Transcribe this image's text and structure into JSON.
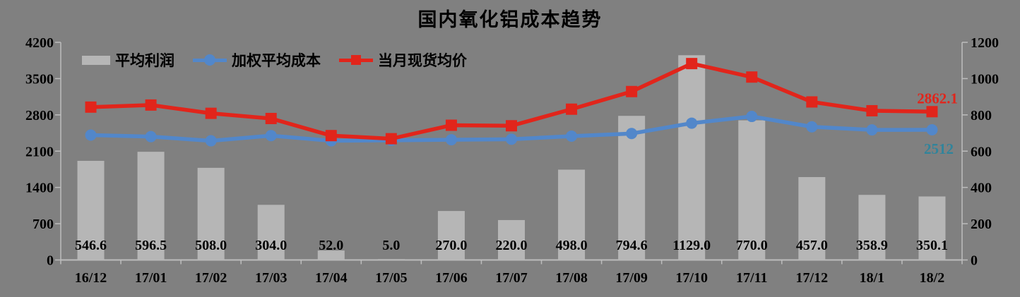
{
  "title": "国内氧化铝成本趋势",
  "colors": {
    "background": "#808080",
    "bar": "#B6B6B6",
    "axis": "#BDBDBD",
    "blue_line": "#5287CA",
    "red_line": "#E1251B",
    "blue_end_label": "#31849B",
    "red_end_label": "#E1251B",
    "text": "#000000"
  },
  "legend": {
    "items": [
      {
        "label": "平均利润",
        "swatch": "bar"
      },
      {
        "label": "加权平均成本",
        "swatch": "line-circle"
      },
      {
        "label": "当月现货均价",
        "swatch": "line-square"
      }
    ]
  },
  "chart_data": {
    "type": "combo-bar-line",
    "title": "国内氧化铝成本趋势",
    "categories": [
      "16/12",
      "17/01",
      "17/02",
      "17/03",
      "17/04",
      "17/05",
      "17/06",
      "17/07",
      "17/08",
      "17/09",
      "17/10",
      "17/11",
      "17/12",
      "18/1",
      "18/2"
    ],
    "series": [
      {
        "name": "平均利润",
        "type": "bar",
        "axis": "right",
        "values": [
          546.6,
          596.5,
          508.0,
          304.0,
          52.0,
          5.0,
          270.0,
          220.0,
          498.0,
          794.6,
          1129.0,
          770.0,
          457.0,
          358.9,
          350.1
        ],
        "value_labels": [
          "546.6",
          "596.5",
          "508.0",
          "304.0",
          "52.0",
          "5.0",
          "270.0",
          "220.0",
          "498.0",
          "794.6",
          "1129.0",
          "770.0",
          "457.0",
          "358.9",
          "350.1"
        ]
      },
      {
        "name": "加权平均成本",
        "type": "line",
        "marker": "circle",
        "axis": "left",
        "values": [
          2410,
          2380,
          2300,
          2400,
          2300,
          2310,
          2320,
          2330,
          2390,
          2440,
          2640,
          2770,
          2570,
          2510,
          2512
        ],
        "end_label": "2512"
      },
      {
        "name": "当月现货均价",
        "type": "line",
        "marker": "square",
        "axis": "left",
        "values": [
          2950,
          2990,
          2830,
          2730,
          2400,
          2340,
          2600,
          2590,
          2910,
          3250,
          3790,
          3530,
          3050,
          2880,
          2862.1
        ],
        "end_label": "2862.1"
      }
    ],
    "left_axis": {
      "range": [
        0,
        4200
      ],
      "ticks": [
        0,
        700,
        1400,
        2100,
        2800,
        3500,
        4200
      ]
    },
    "right_axis": {
      "range": [
        0,
        1200
      ],
      "ticks": [
        0,
        200,
        400,
        600,
        800,
        1000,
        1200
      ]
    },
    "grid": false,
    "legend_position": "top-left"
  }
}
